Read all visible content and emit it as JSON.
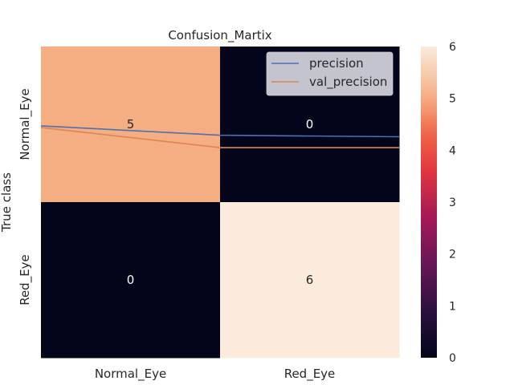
{
  "chart_data": {
    "type": "heatmap",
    "title": "Confusion_Martix",
    "xlabel": "",
    "ylabel": "True class",
    "x_categories": [
      "Normal_Eye",
      "Red_Eye"
    ],
    "y_categories": [
      "Normal_Eye",
      "Red_Eye"
    ],
    "matrix": [
      [
        5,
        0
      ],
      [
        0,
        6
      ]
    ],
    "colorbar": {
      "min": 0,
      "max": 6,
      "ticks": [
        0,
        1,
        2,
        3,
        4,
        5,
        6
      ],
      "colormap": "rocket"
    },
    "overlay_lines": {
      "x_range": [
        0,
        2
      ],
      "y_range": [
        0,
        1
      ],
      "series": [
        {
          "name": "precision",
          "color": "#4c72b0",
          "x": [
            0,
            1,
            2
          ],
          "y": [
            0.745,
            0.715,
            0.71
          ]
        },
        {
          "name": "val_precision",
          "color": "#dd8452",
          "x": [
            0,
            1,
            2
          ],
          "y": [
            0.74,
            0.675,
            0.675
          ]
        }
      ],
      "legend_position": "upper right"
    }
  }
}
